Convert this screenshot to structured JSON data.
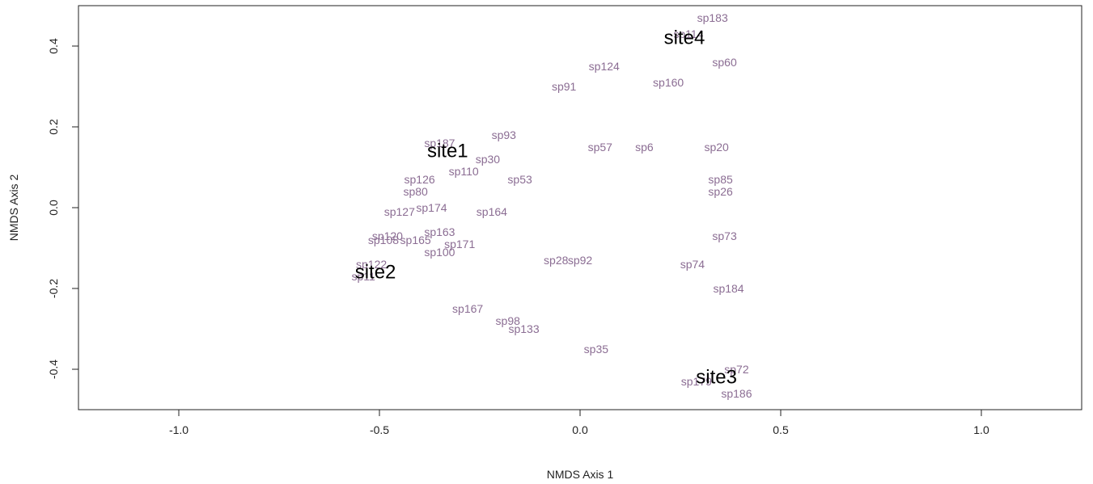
{
  "chart_data": {
    "type": "scatter",
    "title": "",
    "xlabel": "NMDS Axis 1",
    "ylabel": "NMDS Axis 2",
    "xlim": [
      -1.25,
      1.25
    ],
    "ylim": [
      -0.5,
      0.5
    ],
    "xticks": [
      -1.0,
      -0.5,
      0.0,
      0.5,
      1.0
    ],
    "xtick_labels": [
      "-1.0",
      "-0.5",
      "0.0",
      "0.5",
      "1.0"
    ],
    "yticks": [
      -0.4,
      -0.2,
      0.0,
      0.2,
      0.4
    ],
    "ytick_labels": [
      "-0.4",
      "-0.2",
      "0.0",
      "0.2",
      "0.4"
    ],
    "grid": false,
    "series": [
      {
        "kind": "species",
        "color": "#8b6d93",
        "points": [
          {
            "label": "sp183",
            "x": 0.33,
            "y": 0.47
          },
          {
            "label": "sp114",
            "x": 0.27,
            "y": 0.43
          },
          {
            "label": "sp60",
            "x": 0.36,
            "y": 0.36
          },
          {
            "label": "sp124",
            "x": 0.06,
            "y": 0.35
          },
          {
            "label": "sp160",
            "x": 0.22,
            "y": 0.31
          },
          {
            "label": "sp91",
            "x": -0.04,
            "y": 0.3
          },
          {
            "label": "sp93",
            "x": -0.19,
            "y": 0.18
          },
          {
            "label": "sp187",
            "x": -0.35,
            "y": 0.16
          },
          {
            "label": "sp57",
            "x": 0.05,
            "y": 0.15
          },
          {
            "label": "sp6",
            "x": 0.16,
            "y": 0.15
          },
          {
            "label": "sp20",
            "x": 0.34,
            "y": 0.15
          },
          {
            "label": "sp30",
            "x": -0.23,
            "y": 0.12
          },
          {
            "label": "sp110",
            "x": -0.29,
            "y": 0.09
          },
          {
            "label": "sp126",
            "x": -0.4,
            "y": 0.07
          },
          {
            "label": "sp53",
            "x": -0.15,
            "y": 0.07
          },
          {
            "label": "sp85",
            "x": 0.35,
            "y": 0.07
          },
          {
            "label": "sp80",
            "x": -0.41,
            "y": 0.04
          },
          {
            "label": "sp26",
            "x": 0.35,
            "y": 0.04
          },
          {
            "label": "sp174",
            "x": -0.37,
            "y": -0.0
          },
          {
            "label": "sp127",
            "x": -0.45,
            "y": -0.01
          },
          {
            "label": "sp164",
            "x": -0.22,
            "y": -0.01
          },
          {
            "label": "sp163",
            "x": -0.35,
            "y": -0.06
          },
          {
            "label": "sp73",
            "x": 0.36,
            "y": -0.07
          },
          {
            "label": "sp120",
            "x": -0.48,
            "y": -0.07
          },
          {
            "label": "sp108",
            "x": -0.49,
            "y": -0.08
          },
          {
            "label": "sp165",
            "x": -0.41,
            "y": -0.08
          },
          {
            "label": "sp171",
            "x": -0.3,
            "y": -0.09
          },
          {
            "label": "sp100",
            "x": -0.35,
            "y": -0.11
          },
          {
            "label": "sp28",
            "x": -0.06,
            "y": -0.13
          },
          {
            "label": "sp92",
            "x": 0.0,
            "y": -0.13
          },
          {
            "label": "sp74",
            "x": 0.28,
            "y": -0.14
          },
          {
            "label": "sp122",
            "x": -0.52,
            "y": -0.14
          },
          {
            "label": "sp11",
            "x": -0.54,
            "y": -0.17
          },
          {
            "label": "sp184",
            "x": 0.37,
            "y": -0.2
          },
          {
            "label": "sp167",
            "x": -0.28,
            "y": -0.25
          },
          {
            "label": "sp98",
            "x": -0.18,
            "y": -0.28
          },
          {
            "label": "sp133",
            "x": -0.14,
            "y": -0.3
          },
          {
            "label": "sp35",
            "x": 0.04,
            "y": -0.35
          },
          {
            "label": "sp72",
            "x": 0.39,
            "y": -0.4
          },
          {
            "label": "sp179",
            "x": 0.29,
            "y": -0.43
          },
          {
            "label": "sp186",
            "x": 0.39,
            "y": -0.46
          }
        ]
      },
      {
        "kind": "sites",
        "color": "#000000",
        "points": [
          {
            "label": "site1",
            "x": -0.33,
            "y": 0.14
          },
          {
            "label": "site2",
            "x": -0.51,
            "y": -0.16
          },
          {
            "label": "site3",
            "x": 0.34,
            "y": -0.42
          },
          {
            "label": "site4",
            "x": 0.26,
            "y": 0.42
          }
        ]
      }
    ]
  }
}
